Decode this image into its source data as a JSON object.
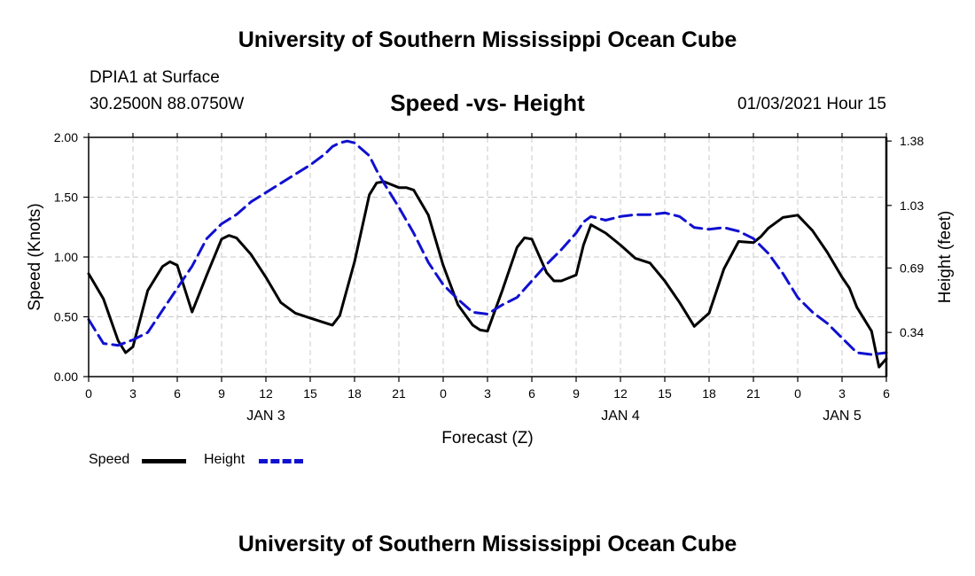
{
  "header": {
    "title": "University of Southern Mississippi Ocean Cube",
    "station": "DPIA1 at Surface",
    "coordinates": "30.2500N 88.0750W",
    "subtitle": "Speed -vs- Height",
    "datetime": "01/03/2021 Hour 15"
  },
  "footer": {
    "title": "University of Southern Mississippi Ocean Cube"
  },
  "legend": {
    "speed_label": "Speed",
    "height_label": "Height"
  },
  "chart_data": {
    "type": "line",
    "xlabel": "Forecast (Z)",
    "ylabel": "Speed (Knots)",
    "y2label": "Height (feet)",
    "xlim": [
      0,
      54
    ],
    "ylim": [
      0,
      2
    ],
    "y2lim": [
      0.1,
      1.4
    ],
    "x_ticks": [
      0,
      3,
      6,
      9,
      12,
      15,
      18,
      21,
      24,
      27,
      30,
      33,
      36,
      39,
      42,
      45,
      48,
      51,
      54
    ],
    "x_tick_labels": [
      "0",
      "3",
      "6",
      "9",
      "12",
      "15",
      "18",
      "21",
      "0",
      "3",
      "6",
      "9",
      "12",
      "15",
      "18",
      "21",
      "0",
      "3",
      "6"
    ],
    "date_labels": [
      {
        "x": 12,
        "label": "JAN 3"
      },
      {
        "x": 36,
        "label": "JAN 4"
      },
      {
        "x": 51,
        "label": "JAN 5"
      }
    ],
    "y_ticks": [
      0,
      0.5,
      1,
      1.5,
      2
    ],
    "y_tick_labels": [
      "0.00",
      "0.50",
      "1.00",
      "1.50",
      "2.00"
    ],
    "y2_ticks": [
      0.34,
      0.69,
      1.03,
      1.38
    ],
    "y2_tick_labels": [
      "0.34",
      "0.69",
      "1.03",
      "1.38"
    ],
    "grid": true,
    "legend_position": "bottom-left",
    "series": [
      {
        "name": "Speed",
        "axis": "left",
        "color": "#000000",
        "dash": "solid",
        "x": [
          0,
          1,
          2,
          2.5,
          3,
          4,
          5,
          5.5,
          6,
          7,
          8,
          9,
          9.5,
          10,
          11,
          12,
          13,
          14,
          15,
          16,
          16.5,
          17,
          18,
          19,
          19.5,
          20,
          21,
          21.5,
          22,
          23,
          24,
          25,
          26,
          26.5,
          27,
          28,
          29,
          29.5,
          30,
          31,
          31.5,
          32,
          33,
          33.5,
          34,
          35,
          36,
          37,
          38,
          39,
          39.5,
          40,
          41,
          42,
          43,
          44,
          45,
          45.5,
          46,
          47,
          48,
          49,
          50,
          51,
          51.5,
          52,
          53,
          53.5,
          54
        ],
        "y": [
          0.86,
          0.65,
          0.3,
          0.2,
          0.25,
          0.72,
          0.92,
          0.96,
          0.93,
          0.54,
          0.85,
          1.15,
          1.18,
          1.16,
          1.02,
          0.83,
          0.62,
          0.53,
          0.49,
          0.45,
          0.43,
          0.51,
          0.96,
          1.52,
          1.62,
          1.63,
          1.58,
          1.58,
          1.56,
          1.35,
          0.93,
          0.6,
          0.43,
          0.39,
          0.38,
          0.72,
          1.08,
          1.16,
          1.15,
          0.87,
          0.8,
          0.8,
          0.85,
          1.1,
          1.27,
          1.2,
          1.1,
          0.99,
          0.95,
          0.8,
          0.71,
          0.62,
          0.42,
          0.53,
          0.9,
          1.13,
          1.12,
          1.17,
          1.24,
          1.33,
          1.35,
          1.22,
          1.04,
          0.83,
          0.74,
          0.58,
          0.38,
          0.08,
          0.15
        ]
      },
      {
        "name": "Height",
        "axis": "right",
        "color": "#1010d0",
        "dash": "dashed",
        "x": [
          0,
          1,
          2,
          3,
          4,
          5,
          6,
          7,
          8,
          9,
          10,
          11,
          12,
          13,
          14,
          15,
          16,
          16.5,
          17,
          17.5,
          18,
          19,
          19.5,
          20,
          21,
          22,
          23,
          24,
          25,
          26,
          27,
          28,
          29,
          30,
          31,
          32,
          33,
          33.5,
          34,
          35,
          36,
          37,
          38,
          39,
          40,
          41,
          42,
          43,
          44,
          45,
          46,
          47,
          48,
          49,
          50,
          51,
          52,
          53,
          54
        ],
        "y": [
          0.41,
          0.28,
          0.27,
          0.3,
          0.34,
          0.46,
          0.58,
          0.7,
          0.85,
          0.93,
          0.98,
          1.05,
          1.1,
          1.15,
          1.2,
          1.25,
          1.31,
          1.35,
          1.37,
          1.38,
          1.37,
          1.3,
          1.22,
          1.15,
          1.02,
          0.88,
          0.72,
          0.6,
          0.52,
          0.45,
          0.44,
          0.49,
          0.53,
          0.62,
          0.71,
          0.79,
          0.88,
          0.94,
          0.97,
          0.95,
          0.97,
          0.98,
          0.98,
          0.99,
          0.97,
          0.91,
          0.9,
          0.91,
          0.89,
          0.85,
          0.77,
          0.66,
          0.53,
          0.45,
          0.39,
          0.31,
          0.23,
          0.22,
          0.23
        ]
      }
    ]
  }
}
